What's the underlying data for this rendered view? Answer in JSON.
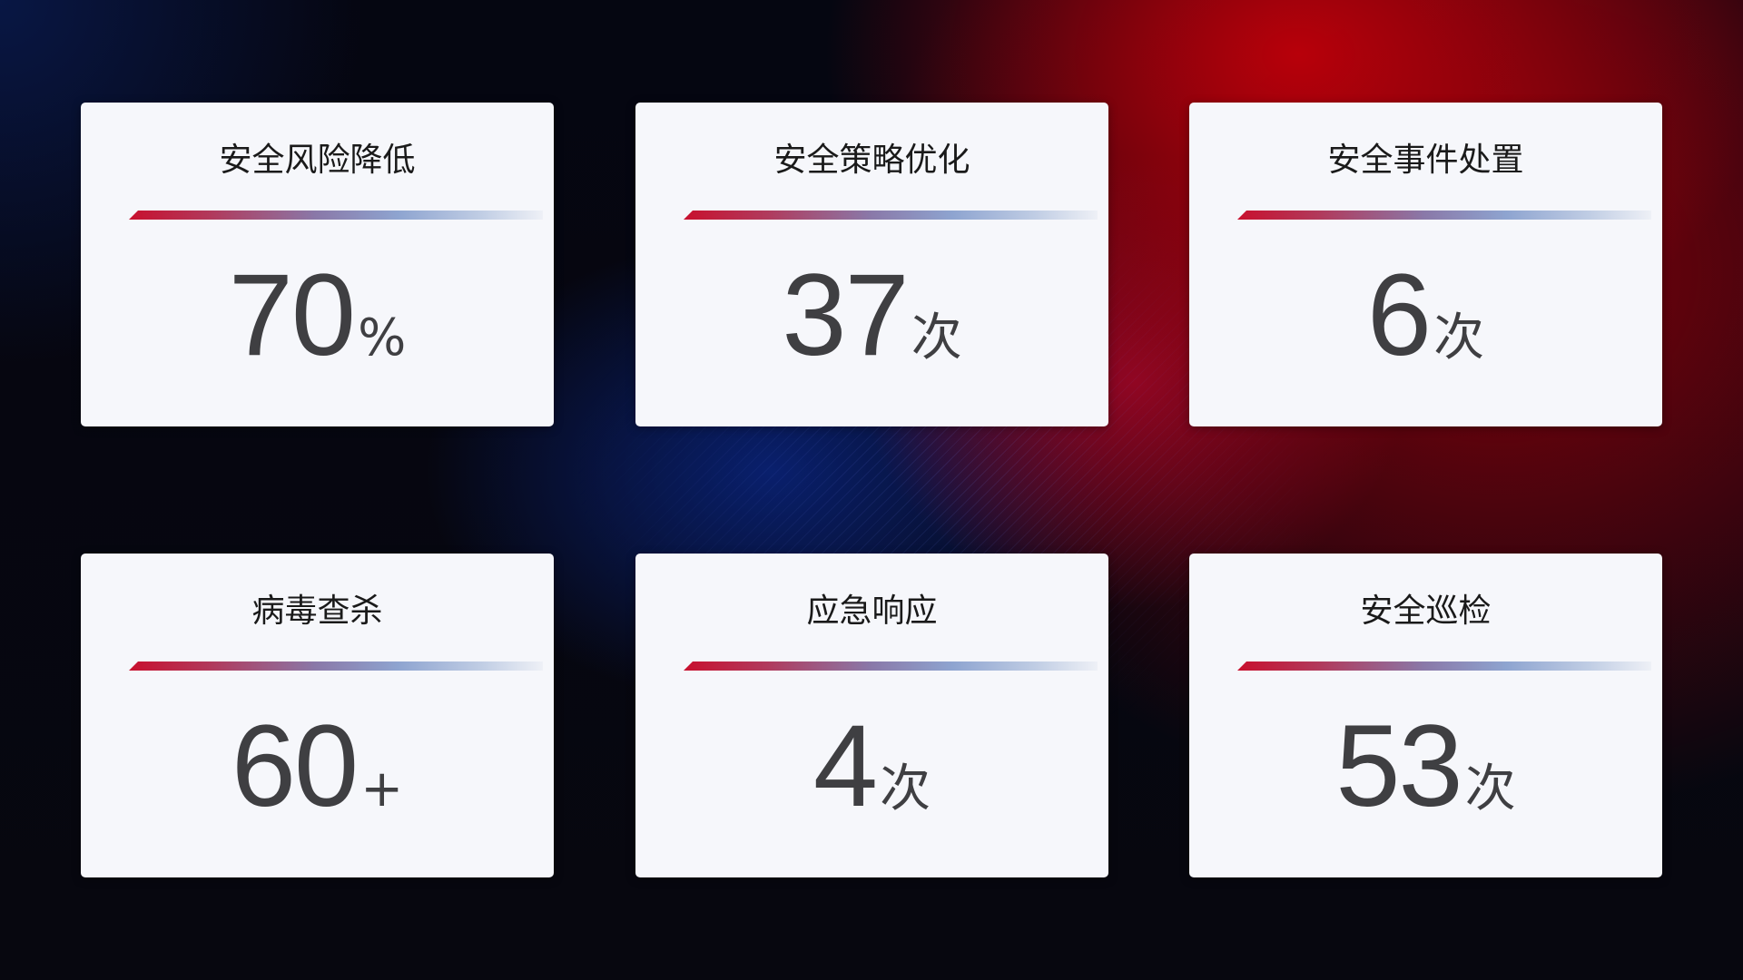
{
  "cards": [
    {
      "title": "安全风险降低",
      "value": "70",
      "unit": "%"
    },
    {
      "title": "安全策略优化",
      "value": "37",
      "unit": "次"
    },
    {
      "title": "安全事件处置",
      "value": "6",
      "unit": "次"
    },
    {
      "title": "病毒查杀",
      "value": "60",
      "unit": "+"
    },
    {
      "title": "应急响应",
      "value": "4",
      "unit": "次"
    },
    {
      "title": "安全巡检",
      "value": "53",
      "unit": "次"
    }
  ],
  "colors": {
    "accent_red": "#c8102e",
    "accent_blue": "#8ea4d0",
    "card_bg": "#f6f7fb",
    "value_text": "#3f3f42"
  }
}
